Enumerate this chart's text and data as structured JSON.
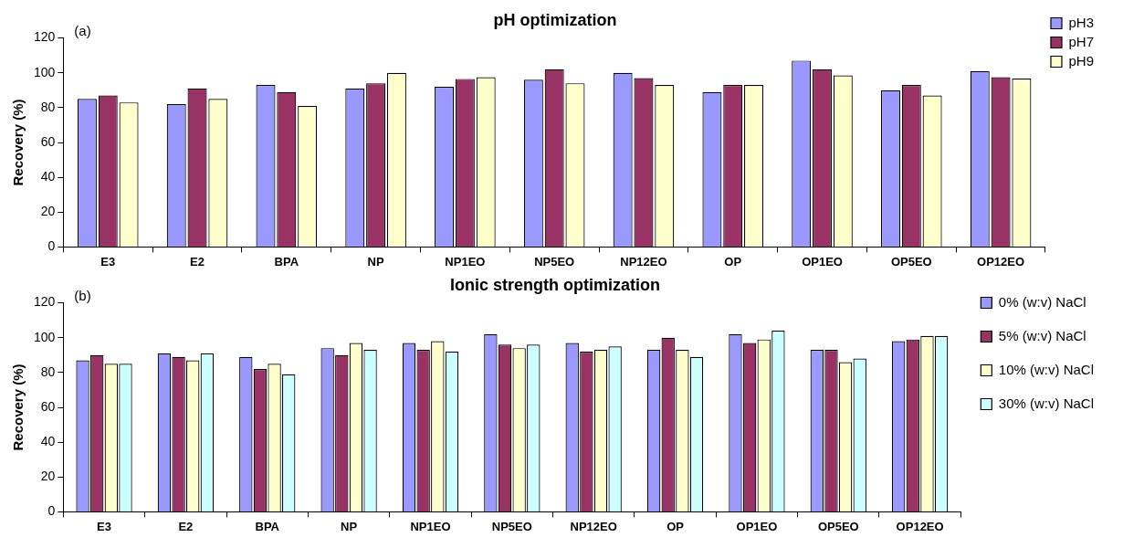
{
  "chart_data": [
    {
      "type": "bar",
      "title": "pH optimization",
      "ylabel": "Recovery (%)",
      "annotations": [
        "(a)"
      ],
      "categories": [
        "E3",
        "E2",
        "BPA",
        "NP",
        "NP1EO",
        "NP5EO",
        "NP12EO",
        "OP",
        "OP1EO",
        "OP5EO",
        "OP12EO"
      ],
      "series": [
        {
          "name": "pH3",
          "color": "#9999ff",
          "values": [
            85,
            82,
            93,
            91,
            92,
            96,
            100,
            89,
            107,
            90,
            101
          ]
        },
        {
          "name": "pH7",
          "color": "#993366",
          "values": [
            87,
            91,
            89,
            94,
            96.5,
            102,
            97,
            93,
            102,
            93,
            97.5
          ]
        },
        {
          "name": "pH9",
          "color": "#ffffcc",
          "values": [
            83,
            85,
            81,
            100,
            97.5,
            94,
            93,
            93,
            98.5,
            87,
            96.7
          ]
        }
      ],
      "ylim": [
        0,
        120
      ],
      "yticks": [
        0,
        20,
        40,
        60,
        80,
        100,
        120
      ],
      "grid": false,
      "legend": "right"
    },
    {
      "type": "bar",
      "title": "Ionic strength optimization",
      "ylabel": "Recovery (%)",
      "annotations": [
        "(b)"
      ],
      "categories": [
        "E3",
        "E2",
        "BPA",
        "NP",
        "NP1EO",
        "NP5EO",
        "NP12EO",
        "OP",
        "OP1EO",
        "OP5EO",
        "OP12EO"
      ],
      "series": [
        {
          "name": "0% (w:v) NaCl",
          "color": "#9999ff",
          "values": [
            87,
            91,
            89,
            94,
            97,
            102,
            97,
            93,
            102,
            93,
            98
          ]
        },
        {
          "name": "5% (w:v) NaCl",
          "color": "#993366",
          "values": [
            90,
            89,
            82,
            90,
            93,
            96,
            92,
            100,
            97,
            93,
            99
          ]
        },
        {
          "name": "10% (w:v) NaCl",
          "color": "#ffffcc",
          "values": [
            85,
            87,
            85,
            97,
            98,
            94,
            93,
            93,
            99,
            86,
            101
          ]
        },
        {
          "name": "30% (w:v) NaCl",
          "color": "#ccffff",
          "values": [
            85,
            91,
            79,
            93,
            92,
            96,
            95,
            89,
            104,
            88,
            101
          ]
        }
      ],
      "ylim": [
        0,
        120
      ],
      "yticks": [
        0,
        20,
        40,
        60,
        80,
        100,
        120
      ],
      "grid": false,
      "legend": "right"
    }
  ]
}
